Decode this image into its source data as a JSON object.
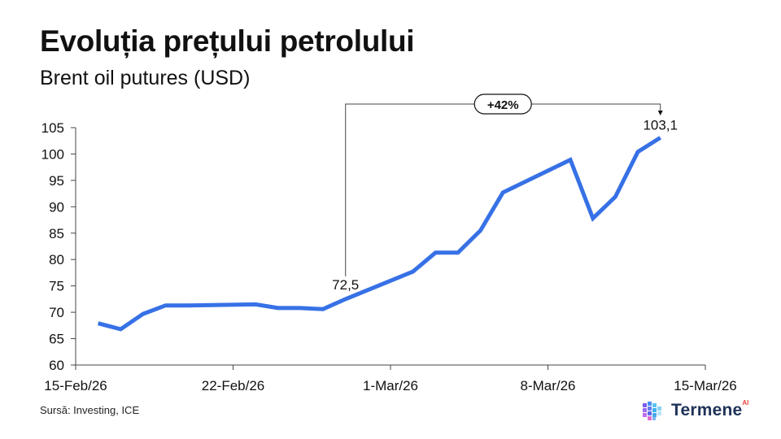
{
  "title": "Evoluția prețului petrolului",
  "subtitle": "Brent oil putures (USD)",
  "source": "Sursă: Investing, ICE",
  "brand": {
    "name": "Termene",
    "superscript": "AI"
  },
  "colors": {
    "line": "#3771e6",
    "axis": "#444444",
    "text": "#111111",
    "brand_text": "#1f3358",
    "brand_accent": "#e8453c"
  },
  "chart_data": {
    "type": "line",
    "x_unit": "date",
    "ylim": [
      60,
      105
    ],
    "yticks": [
      60,
      65,
      70,
      75,
      80,
      85,
      90,
      95,
      100,
      105
    ],
    "xlim": [
      "2026-02-15",
      "2026-03-15"
    ],
    "xticks": [
      {
        "date": "2026-02-15",
        "label": "15-Feb/26"
      },
      {
        "date": "2026-02-22",
        "label": "22-Feb/26"
      },
      {
        "date": "2026-03-01",
        "label": "1-Mar/26"
      },
      {
        "date": "2026-03-08",
        "label": "8-Mar/26"
      },
      {
        "date": "2026-03-15",
        "label": "15-Mar/26"
      }
    ],
    "grid": false,
    "series": [
      {
        "points": [
          {
            "x": "2026-02-16",
            "y": 67.9
          },
          {
            "x": "2026-02-17",
            "y": 66.8
          },
          {
            "x": "2026-02-18",
            "y": 69.7
          },
          {
            "x": "2026-02-19",
            "y": 71.3
          },
          {
            "x": "2026-02-20",
            "y": 71.3
          },
          {
            "x": "2026-02-23",
            "y": 71.5
          },
          {
            "x": "2026-02-24",
            "y": 70.8
          },
          {
            "x": "2026-02-25",
            "y": 70.8
          },
          {
            "x": "2026-02-26",
            "y": 70.6
          },
          {
            "x": "2026-02-27",
            "y": 72.5
          },
          {
            "x": "2026-03-02",
            "y": 77.7
          },
          {
            "x": "2026-03-03",
            "y": 81.3
          },
          {
            "x": "2026-03-04",
            "y": 81.3
          },
          {
            "x": "2026-03-05",
            "y": 85.5
          },
          {
            "x": "2026-03-06",
            "y": 92.7
          },
          {
            "x": "2026-03-09",
            "y": 98.9
          },
          {
            "x": "2026-03-10",
            "y": 87.8
          },
          {
            "x": "2026-03-11",
            "y": 91.9
          },
          {
            "x": "2026-03-12",
            "y": 100.4
          },
          {
            "x": "2026-03-13",
            "y": 103.1
          }
        ]
      }
    ],
    "annotations": {
      "start": {
        "x": "2026-02-27",
        "y": 72.5,
        "label": "72,5"
      },
      "end": {
        "x": "2026-03-13",
        "y": 103.1,
        "label": "103,1"
      },
      "change_label": "+42%"
    }
  }
}
